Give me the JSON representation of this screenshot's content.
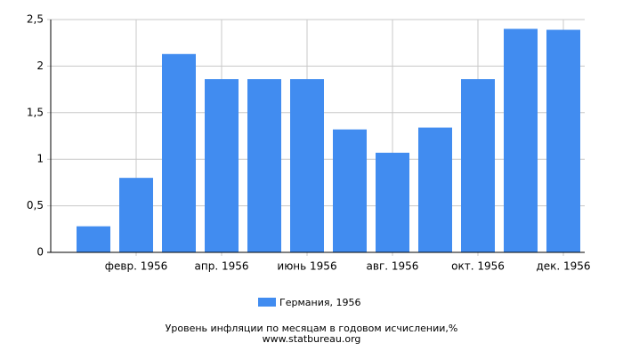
{
  "chart_data": {
    "type": "bar",
    "title": "Уровень инфляции по месяцам в годовом исчислении,%",
    "subtitle": "www.statbureau.org",
    "categories": [
      null,
      "февр. 1956",
      null,
      "апр. 1956",
      null,
      "июнь 1956",
      null,
      "авг. 1956",
      null,
      "окт. 1956",
      null,
      "дек. 1956"
    ],
    "series": [
      {
        "name": "Германия, 1956",
        "color": "#418cf0",
        "values": [
          0.28,
          0.8,
          2.13,
          1.86,
          1.86,
          1.86,
          1.32,
          1.07,
          1.34,
          1.86,
          2.4,
          2.39
        ]
      }
    ],
    "ylim": [
      0,
      2.5
    ],
    "yticks": [
      0,
      {
        "value": 0.5,
        "label": "0,5"
      },
      1,
      {
        "value": 1.5,
        "label": "1,5"
      },
      2,
      {
        "value": 2.5,
        "label": "2,5"
      }
    ],
    "grid": true
  }
}
